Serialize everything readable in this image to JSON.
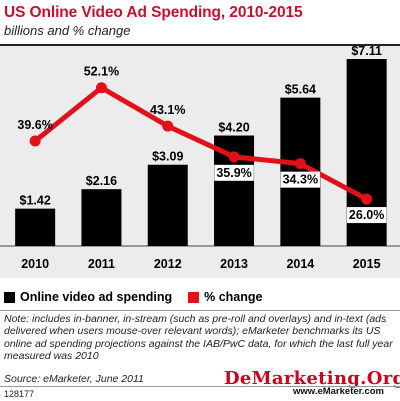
{
  "header": {
    "title": "US Online Video Ad Spending, 2010-2015",
    "subtitle": "billions and % change"
  },
  "chart_data": {
    "type": "bar",
    "categories": [
      "2010",
      "2011",
      "2012",
      "2013",
      "2014",
      "2015"
    ],
    "series": [
      {
        "name": "Online video ad spending",
        "type": "bar",
        "values": [
          1.42,
          2.16,
          3.09,
          4.2,
          5.64,
          7.11
        ],
        "labels": [
          "$1.42",
          "$2.16",
          "$3.09",
          "$4.20",
          "$5.64",
          "$7.11"
        ],
        "color": "#000000"
      },
      {
        "name": "% change",
        "type": "line",
        "values": [
          39.6,
          52.1,
          43.1,
          35.9,
          34.3,
          26.0
        ],
        "labels": [
          "39.6%",
          "52.1%",
          "43.1%",
          "35.9%",
          "34.3%",
          "26.0%"
        ],
        "color": "#e3101a"
      }
    ],
    "bar_ylim": [
      0,
      7.3
    ],
    "line_ylim": [
      15,
      60
    ],
    "grid": false,
    "legend": "bottom-left"
  },
  "legend": {
    "bar_label": "Online video ad spending",
    "line_label": "% change"
  },
  "footer": {
    "note": "Note: includes in-banner, in-stream (such as pre-roll and overlays) and in-text (ads delivered when users mouse-over relevant words); eMarketer benchmarks its US online ad spending projections against the IAB/PwC data, for which the last full year measured was 2010",
    "source": "Source: eMarketer, June 2011",
    "chart_id": "128177",
    "brand": "www.eMarketer.com",
    "watermark": "DeMarketing.Org"
  }
}
